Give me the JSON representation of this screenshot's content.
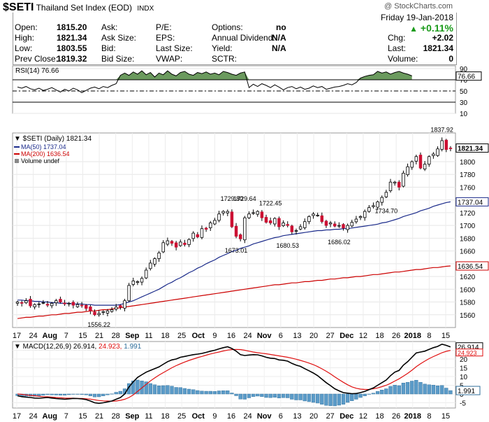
{
  "header": {
    "symbol": "$SETI",
    "name": "Thailand Set Index (EOD)",
    "exchange": "INDX",
    "copyright": "@ StockCharts.com"
  },
  "quote": {
    "date": "Friday   19-Jan-2018",
    "change_pct": "+0.11%",
    "open_label": "Open:",
    "open": "1815.20",
    "high_label": "High:",
    "high": "1821.34",
    "low_label": "Low:",
    "low": "1803.55",
    "prev_label": "Prev Close:",
    "prev": "1819.32",
    "ask_label": "Ask:",
    "asksize_label": "Ask Size:",
    "bid_label": "Bid:",
    "bidsize_label": "Bid Size:",
    "pe_label": "P/E:",
    "eps_label": "EPS:",
    "lastsize_label": "Last Size:",
    "vwap_label": "VWAP:",
    "options_label": "Options:",
    "options": "no",
    "div_label": "Annual Dividend:",
    "div": "N/A",
    "yield_label": "Yield:",
    "yield": "N/A",
    "sctr_label": "SCTR:",
    "chg_label": "Chg:",
    "chg": "+2.02",
    "last_label": "Last:",
    "last": "1821.34",
    "volume_label": "Volume:",
    "volume": "0"
  },
  "chart_data": [
    {
      "type": "line",
      "name": "rsi-panel",
      "legend": "RSI(14) 76.66",
      "ylim": [
        10,
        95
      ],
      "yticks": [
        "90",
        "70",
        "50",
        "30",
        "10"
      ],
      "levels": [
        70,
        50,
        30
      ],
      "last_label": "76.66",
      "values": [
        57,
        55,
        58,
        54,
        52,
        55,
        51,
        53,
        56,
        52,
        48,
        53,
        50,
        55,
        52,
        47,
        51,
        55,
        57,
        54,
        58,
        56,
        60,
        63,
        78,
        82,
        78,
        84,
        80,
        86,
        79,
        83,
        75,
        82,
        79,
        86,
        80,
        77,
        83,
        85,
        80,
        78,
        83,
        81,
        84,
        80,
        82,
        79,
        85,
        83,
        80,
        78,
        82,
        84,
        56,
        62,
        58,
        63,
        60,
        56,
        61,
        57,
        52,
        56,
        58,
        54,
        57,
        53,
        55,
        59,
        56,
        58,
        53,
        55,
        57,
        58,
        60,
        63,
        61,
        65,
        73,
        76,
        78,
        79,
        85,
        82,
        84,
        80,
        83,
        85,
        82,
        80,
        77
      ]
    },
    {
      "type": "candlestick",
      "name": "price-panel",
      "legend": [
        "$SETI (Daily) 1821.34",
        "MA(50) 1737.04",
        "MA(200) 1636.54",
        "Volume undef"
      ],
      "ylim": [
        1540,
        1845
      ],
      "yticks": [
        1560,
        1580,
        1600,
        1620,
        1640,
        1660,
        1680,
        1700,
        1720,
        1740,
        1760,
        1780,
        1800
      ],
      "xticks": [
        "17",
        "24",
        "Aug",
        "7",
        "15",
        "21",
        "28",
        "Sep",
        "11",
        "18",
        "25",
        "Oct",
        "9",
        "16",
        "24",
        "Nov",
        "6",
        "13",
        "20",
        "27",
        "Dec",
        "12",
        "18",
        "26",
        "2018",
        "8",
        "15"
      ],
      "last_price": 1821.34,
      "ma50_last": 1737.04,
      "ma200_last": 1636.54,
      "annotations": [
        {
          "label": "1556.22",
          "price": 1556.22
        },
        {
          "label": "1729.80",
          "price": 1729.8
        },
        {
          "label": "1729.64",
          "price": 1729.64
        },
        {
          "label": "1673.01",
          "price": 1673.01
        },
        {
          "label": "1680.53",
          "price": 1680.53
        },
        {
          "label": "1722.45",
          "price": 1722.45
        },
        {
          "label": "1686.02",
          "price": 1686.02
        },
        {
          "label": "1734.70",
          "price": 1734.7
        },
        {
          "label": "1837.92",
          "price": 1837.92
        }
      ],
      "close": [
        1580,
        1578,
        1582,
        1574,
        1576,
        1577,
        1579,
        1575,
        1578,
        1582,
        1580,
        1577,
        1578,
        1575,
        1576,
        1574,
        1570,
        1566,
        1560,
        1562,
        1565,
        1566,
        1568,
        1572,
        1572,
        1582,
        1606,
        1613,
        1612,
        1617,
        1630,
        1641,
        1648,
        1657,
        1673,
        1676,
        1672,
        1666,
        1674,
        1670,
        1678,
        1688,
        1682,
        1695,
        1694,
        1704,
        1708,
        1718,
        1722,
        1722,
        1698,
        1683,
        1679,
        1712,
        1718,
        1720,
        1722,
        1712,
        1705,
        1704,
        1711,
        1698,
        1704,
        1700,
        1690,
        1692,
        1698,
        1706,
        1714,
        1718,
        1716,
        1706,
        1700,
        1704,
        1699,
        1700,
        1696,
        1700,
        1705,
        1710,
        1714,
        1722,
        1728,
        1731,
        1737,
        1744,
        1752,
        1768,
        1768,
        1760,
        1782,
        1792,
        1800,
        1808,
        1790,
        1796,
        1808,
        1812,
        1820,
        1833,
        1819,
        1821.34
      ],
      "ma50": [
        1583,
        1583,
        1582,
        1582,
        1581,
        1581,
        1580,
        1580,
        1579,
        1579,
        1578,
        1578,
        1578,
        1577,
        1577,
        1577,
        1576,
        1576,
        1575,
        1575,
        1575,
        1575,
        1575,
        1575,
        1576,
        1578,
        1580,
        1582,
        1585,
        1588,
        1591,
        1594,
        1597,
        1600,
        1604,
        1608,
        1611,
        1615,
        1618,
        1622,
        1626,
        1629,
        1633,
        1636,
        1640,
        1643,
        1646,
        1650,
        1653,
        1656,
        1659,
        1661,
        1664,
        1666,
        1668,
        1671,
        1673,
        1675,
        1677,
        1679,
        1681,
        1682,
        1684,
        1685,
        1686,
        1687,
        1688,
        1689,
        1690,
        1691,
        1692,
        1692,
        1693,
        1693,
        1694,
        1694,
        1695,
        1695,
        1696,
        1697,
        1698,
        1699,
        1700,
        1701,
        1702,
        1704,
        1705,
        1707,
        1709,
        1711,
        1714,
        1716,
        1718,
        1720,
        1723,
        1725,
        1727,
        1730,
        1732,
        1734,
        1736,
        1737.04
      ],
      "ma200": [
        1554,
        1555,
        1556,
        1556,
        1557,
        1558,
        1558,
        1559,
        1560,
        1560,
        1561,
        1562,
        1562,
        1563,
        1564,
        1564,
        1565,
        1566,
        1566,
        1567,
        1568,
        1568,
        1569,
        1570,
        1571,
        1572,
        1573,
        1574,
        1575,
        1576,
        1577,
        1578,
        1579,
        1580,
        1581,
        1582,
        1583,
        1584,
        1585,
        1586,
        1587,
        1588,
        1589,
        1590,
        1591,
        1592,
        1593,
        1594,
        1595,
        1596,
        1597,
        1598,
        1599,
        1600,
        1601,
        1602,
        1603,
        1604,
        1605,
        1606,
        1607,
        1607,
        1608,
        1609,
        1610,
        1610,
        1611,
        1612,
        1612,
        1613,
        1614,
        1614,
        1615,
        1616,
        1616,
        1617,
        1618,
        1618,
        1619,
        1620,
        1620,
        1621,
        1622,
        1623,
        1623,
        1624,
        1625,
        1626,
        1627,
        1627,
        1628,
        1629,
        1630,
        1631,
        1631,
        1632,
        1633,
        1634,
        1634,
        1635,
        1636,
        1636.54
      ]
    },
    {
      "type": "line",
      "name": "macd-panel",
      "legend": [
        "MACD(12,26,9)",
        "26.914,",
        "24.923,",
        "1.991"
      ],
      "ylim": [
        -8,
        30
      ],
      "yticks": [
        "25",
        "20",
        "15",
        "10",
        "5",
        "0",
        "-5"
      ],
      "macd_last_label": "26.914",
      "signal_last_label": "24.923",
      "hist_last_label": "1.991",
      "macd": [
        -1,
        -1.5,
        -1.8,
        -2,
        -2.3,
        -2.4,
        -2.2,
        -2,
        -2.3,
        -2.6,
        -2.8,
        -3,
        -2.8,
        -2.5,
        -2.6,
        -2.8,
        -3.2,
        -4,
        -5,
        -5.3,
        -5,
        -4.5,
        -4,
        -3,
        -2,
        0,
        4,
        7,
        9.5,
        11,
        12.5,
        13.5,
        14.5,
        15.5,
        17,
        18.5,
        19.5,
        20,
        21,
        21.5,
        22,
        22.5,
        22.8,
        23.2,
        23.8,
        24.5,
        25,
        25.8,
        26.5,
        27,
        26,
        24.5,
        22.5,
        22,
        22.3,
        22.5,
        22.4,
        21.8,
        21,
        20.5,
        20.3,
        19.5,
        19.3,
        18.8,
        17.5,
        16.5,
        15.8,
        14.5,
        13.3,
        12,
        10.5,
        8.5,
        6.5,
        4.8,
        3,
        1.8,
        0.8,
        0.5,
        0.2,
        0.3,
        0.8,
        1.5,
        2.5,
        3.5,
        5,
        6.5,
        8,
        10.5,
        12.5,
        13.5,
        16.5,
        18.5,
        21,
        23.5,
        24,
        24.5,
        25.5,
        26.5,
        27.2,
        28.5,
        27.8,
        26.914
      ],
      "signal": [
        0,
        -0.2,
        -0.5,
        -0.8,
        -1,
        -1.3,
        -1.5,
        -1.6,
        -1.8,
        -2,
        -2.1,
        -2.3,
        -2.4,
        -2.4,
        -2.5,
        -2.5,
        -2.7,
        -2.9,
        -3.3,
        -3.7,
        -3.9,
        -4,
        -4.1,
        -4,
        -3.6,
        -3,
        -2,
        -0.5,
        1.5,
        3.5,
        5.5,
        7.5,
        9.2,
        10.8,
        12.2,
        13.6,
        15,
        16.2,
        17.3,
        18.3,
        19.2,
        20,
        20.8,
        21.5,
        22.2,
        22.9,
        23.5,
        24,
        24.6,
        25.1,
        25.4,
        25.5,
        25.4,
        25,
        24.5,
        24,
        23.6,
        23.3,
        23,
        22.6,
        22.2,
        21.8,
        21.4,
        21,
        20.5,
        19.9,
        19.2,
        18.5,
        17.7,
        16.8,
        15.7,
        14.4,
        13,
        11.5,
        9.8,
        8.2,
        6.7,
        5.3,
        4.1,
        3.3,
        2.8,
        2.6,
        2.7,
        3,
        3.5,
        4.2,
        5,
        6.1,
        7.4,
        8.7,
        10.2,
        11.8,
        13.6,
        15.6,
        17.3,
        18.8,
        20.2,
        21.4,
        22.5,
        23.6,
        24.4,
        24.923
      ]
    }
  ]
}
